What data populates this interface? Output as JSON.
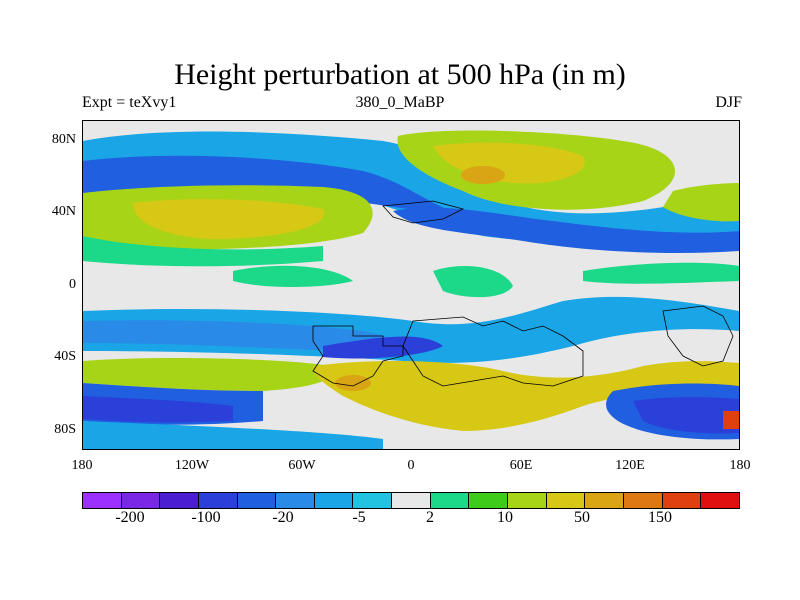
{
  "title": "Height perturbation at 500 hPa (in m)",
  "subtitle_left": "Expt = teXvy1",
  "subtitle_center": "380_0_MaBP",
  "subtitle_right": "DJF",
  "y_ticks": [
    "80N",
    "40N",
    "0",
    "40S",
    "80S"
  ],
  "x_ticks": [
    "180",
    "120W",
    "60W",
    "0",
    "60E",
    "120E",
    "180"
  ],
  "colorbar": {
    "colors": [
      "#9b30ff",
      "#7a28e6",
      "#4b1fd1",
      "#2b3fd9",
      "#1f5fe0",
      "#2a8ae8",
      "#1aa6e6",
      "#22c3e0",
      "#e8e8e8",
      "#1cd98a",
      "#3ecb1a",
      "#a8d418",
      "#d6c814",
      "#d9a514",
      "#de7812",
      "#e04010",
      "#e01010"
    ],
    "labels": [
      "-200",
      "-100",
      "-20",
      "-5",
      "2",
      "10",
      "50",
      "150"
    ]
  }
}
